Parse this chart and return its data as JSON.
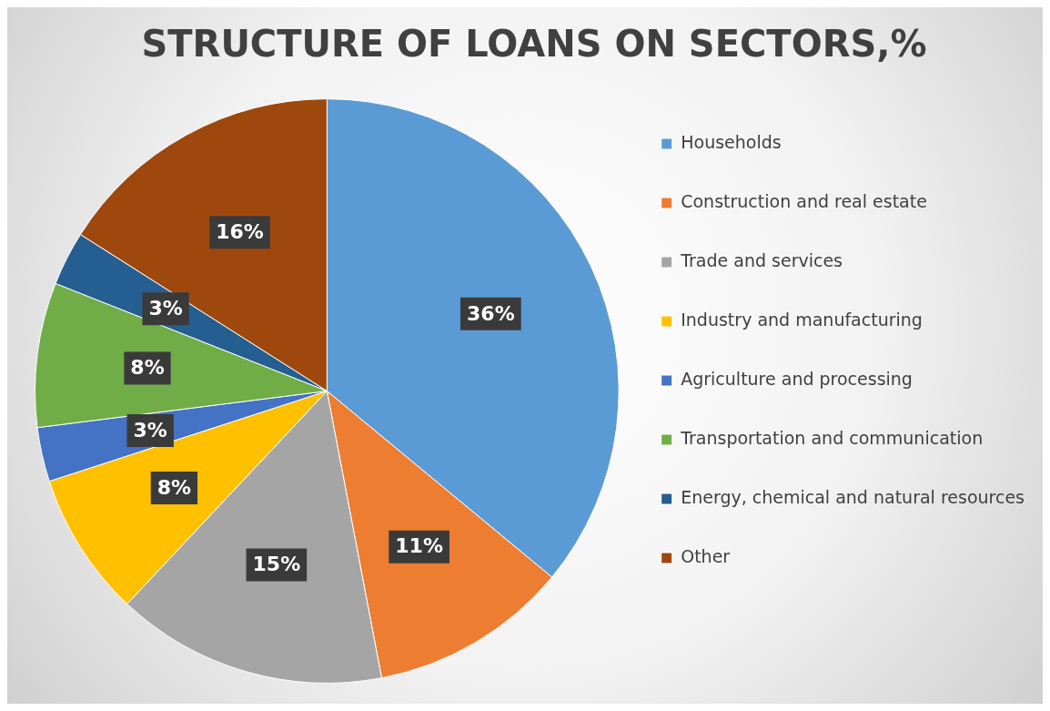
{
  "chart_data": {
    "type": "pie",
    "title": "STRUCTURE OF LOANS ON SECTORS,%",
    "categories": [
      "Households",
      "Construction and real estate",
      "Trade and services",
      "Industry and manufacturing",
      "Agriculture and processing",
      "Transportation and communication",
      "Energy, chemical and natural resources",
      "Other"
    ],
    "values": [
      36,
      11,
      15,
      8,
      3,
      8,
      3,
      16
    ],
    "colors": [
      "#5b9bd5",
      "#ed7d31",
      "#a5a5a5",
      "#ffc000",
      "#4472c4",
      "#70ad47",
      "#255e91",
      "#9e480e"
    ],
    "value_labels": [
      "36%",
      "11%",
      "15%",
      "8%",
      "3%",
      "8%",
      "3%",
      "16%"
    ],
    "legend": "right"
  }
}
